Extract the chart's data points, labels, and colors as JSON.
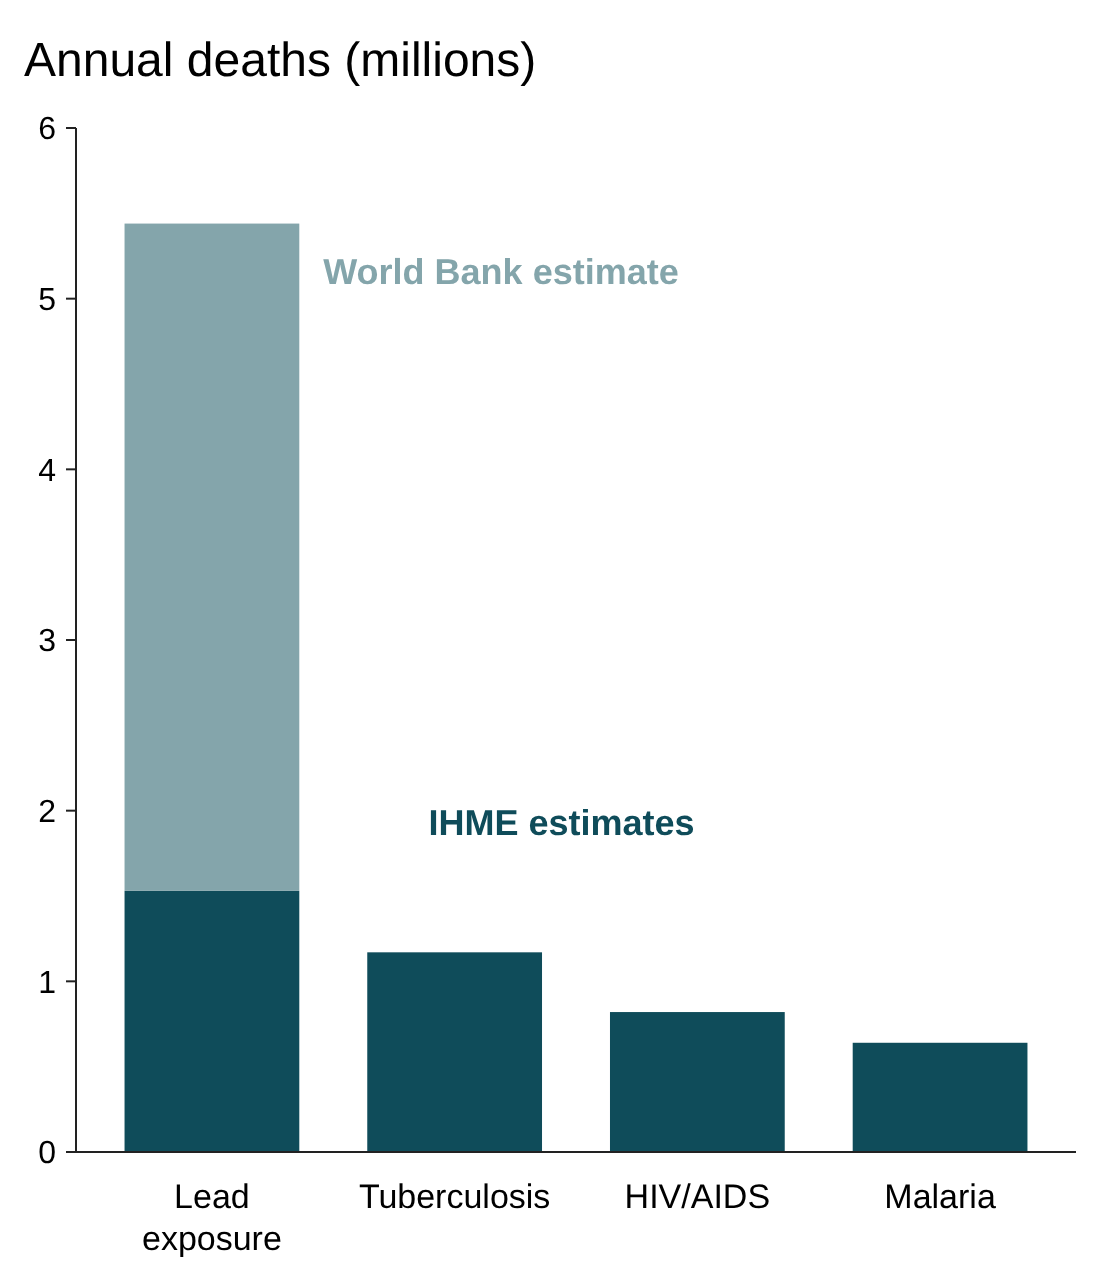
{
  "chart_data": {
    "type": "bar",
    "title": "Annual deaths (millions)",
    "categories": [
      "Lead exposure",
      "Tuberculosis",
      "HIV/AIDS",
      "Malaria"
    ],
    "stacked": true,
    "grid": false,
    "ylim": [
      0,
      6
    ],
    "yticks": [
      0,
      1,
      2,
      3,
      4,
      5,
      6
    ],
    "series": [
      {
        "name": "IHME estimates",
        "color": "#0f4c5a",
        "values": [
          1.53,
          1.17,
          0.82,
          0.64
        ]
      },
      {
        "name": "World Bank estimate",
        "color": "#84a5ab",
        "values": [
          3.91,
          null,
          null,
          null
        ]
      }
    ]
  }
}
